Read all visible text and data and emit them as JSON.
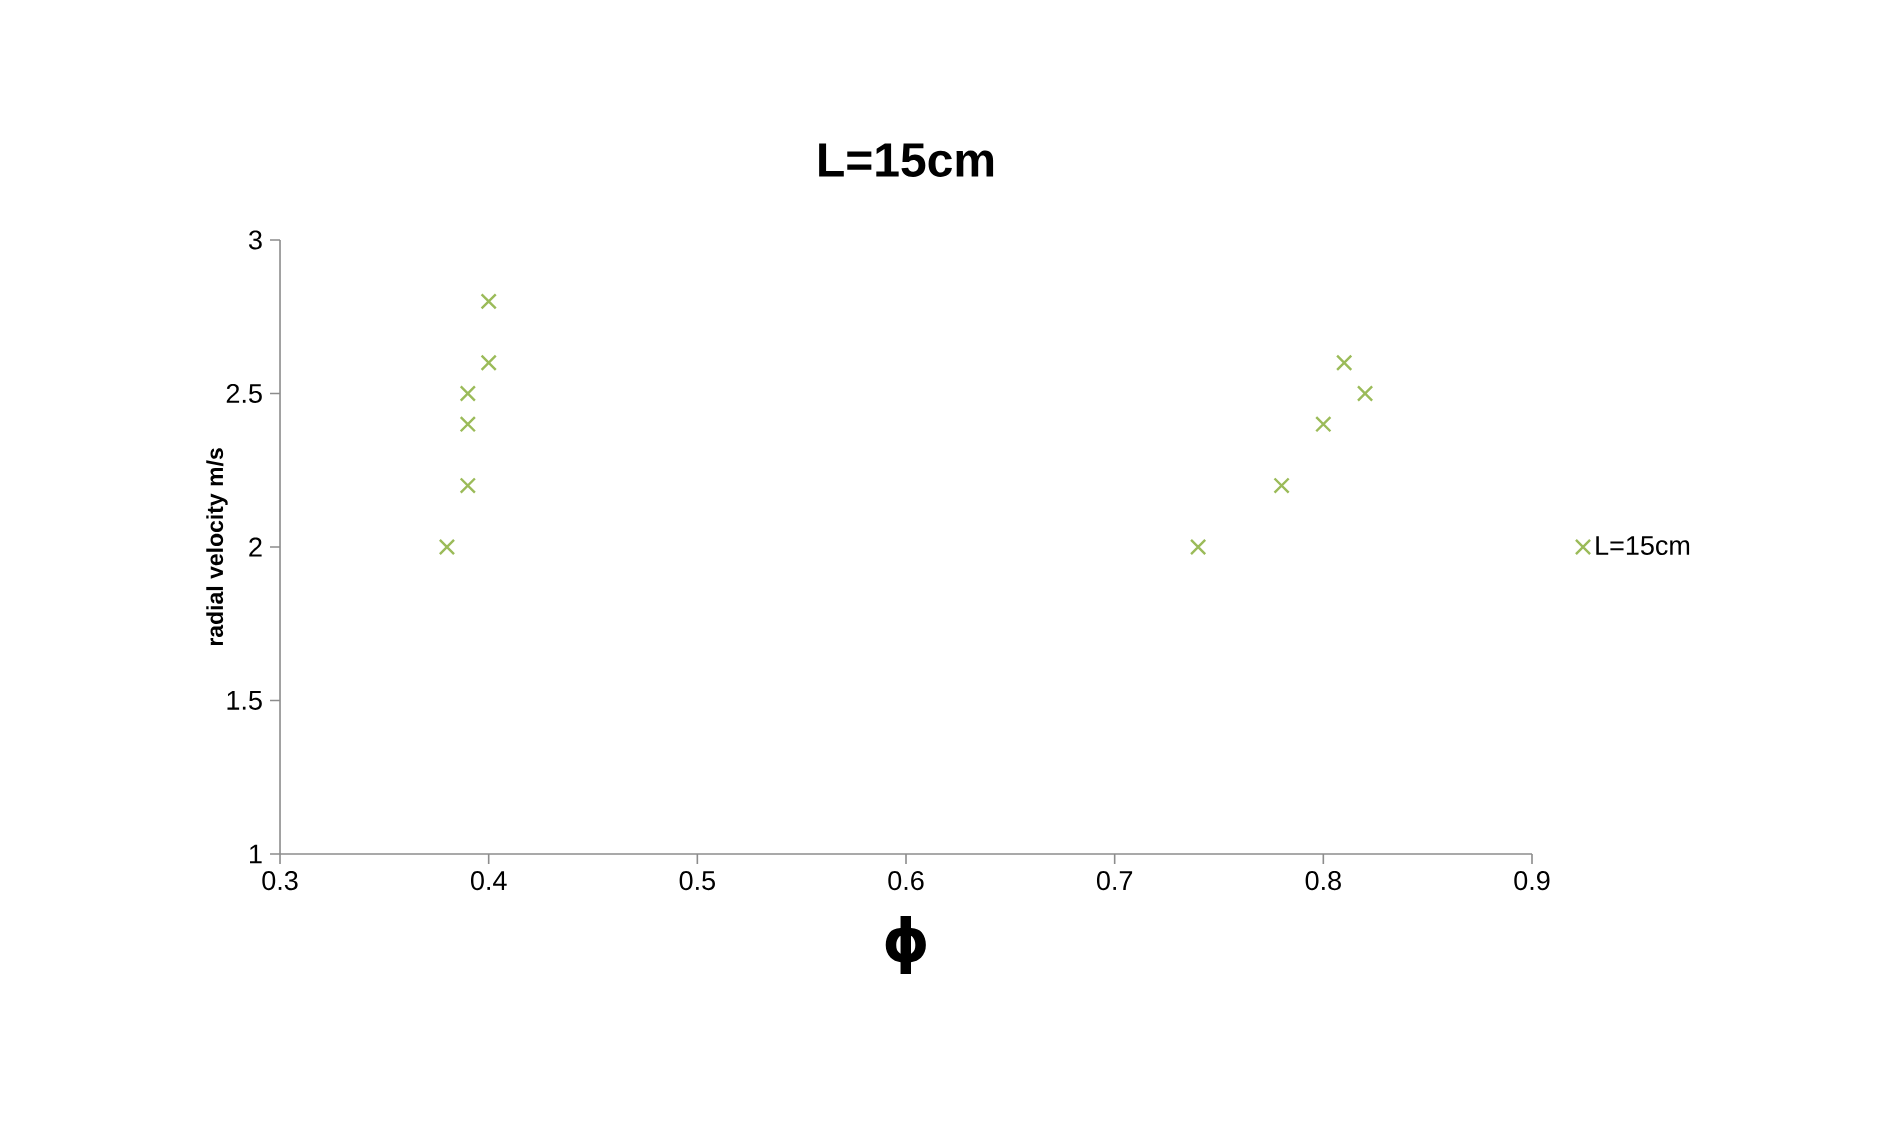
{
  "chart_data": {
    "type": "scatter",
    "title": "L=15cm",
    "xlabel": "ϕ",
    "ylabel": "radial velocity m/s",
    "series": [
      {
        "name": "L=15cm",
        "color": "#9bbb59",
        "x": [
          0.38,
          0.39,
          0.39,
          0.39,
          0.4,
          0.4,
          0.74,
          0.78,
          0.8,
          0.81,
          0.82
        ],
        "values": [
          2.0,
          2.2,
          2.4,
          2.5,
          2.6,
          2.8,
          2.0,
          2.2,
          2.4,
          2.6,
          2.5
        ]
      }
    ],
    "xlim": [
      0.3,
      0.9
    ],
    "xticks": [
      0.3,
      0.4,
      0.5,
      0.6,
      0.7,
      0.8,
      0.9
    ],
    "ylim": [
      1,
      3
    ],
    "yticks": [
      1,
      1.5,
      2,
      2.5,
      3
    ],
    "grid": false,
    "legend": "right",
    "marker": "cross"
  }
}
